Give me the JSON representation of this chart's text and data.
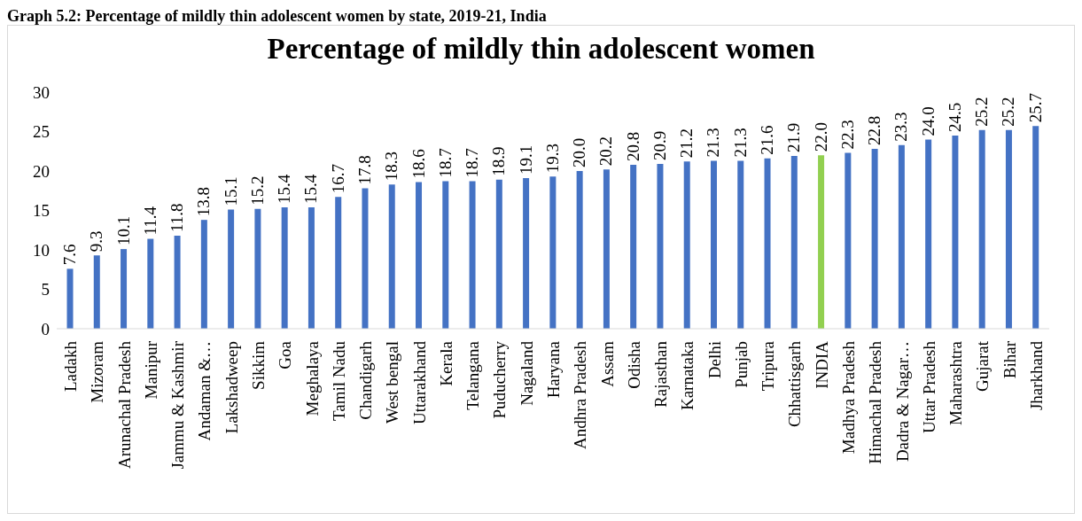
{
  "chart_data": {
    "type": "bar",
    "subtitle": "Graph 5.2: Percentage of mildly thin adolescent women by state, 2019-21, India",
    "title": "Percentage of mildly thin adolescent women",
    "categories": [
      "Ladakh",
      "Mizoram",
      "Arunachal Pradesh",
      "Manipur",
      "Jammu & Kashmir",
      "Andaman &…",
      "Lakshadweep",
      "Sikkim",
      "Goa",
      "Meghalaya",
      "Tamil Nadu",
      "Chandigarh",
      "West bengal",
      "Uttarakhand",
      "Kerala",
      "Telangana",
      "Puducherry",
      "Nagaland",
      "Haryana",
      "Andhra Pradesh",
      "Assam",
      "Odisha",
      "Rajasthan",
      "Karnataka",
      "Delhi",
      "Punjab",
      "Tripura",
      "Chhattisgarh",
      "INDIA",
      "Madhya Pradesh",
      "Himachal Pradesh",
      "Dadra & Nagar…",
      "Uttar Pradesh",
      "Maharashtra",
      "Gujarat",
      "Bihar",
      "Jharkhand"
    ],
    "values": [
      7.6,
      9.3,
      10.1,
      11.4,
      11.8,
      13.8,
      15.1,
      15.2,
      15.4,
      15.4,
      16.7,
      17.8,
      18.3,
      18.6,
      18.7,
      18.7,
      18.9,
      19.1,
      19.3,
      20.0,
      20.2,
      20.8,
      20.9,
      21.2,
      21.3,
      21.3,
      21.6,
      21.9,
      22.0,
      22.3,
      22.8,
      23.3,
      24.0,
      24.5,
      25.2,
      25.2,
      25.7
    ],
    "colors": [
      "#4472c4",
      "#4472c4",
      "#4472c4",
      "#4472c4",
      "#4472c4",
      "#4472c4",
      "#4472c4",
      "#4472c4",
      "#4472c4",
      "#4472c4",
      "#4472c4",
      "#4472c4",
      "#4472c4",
      "#4472c4",
      "#4472c4",
      "#4472c4",
      "#4472c4",
      "#4472c4",
      "#4472c4",
      "#4472c4",
      "#4472c4",
      "#4472c4",
      "#4472c4",
      "#4472c4",
      "#4472c4",
      "#4472c4",
      "#4472c4",
      "#4472c4",
      "#92d050",
      "#4472c4",
      "#4472c4",
      "#4472c4",
      "#4472c4",
      "#4472c4",
      "#4472c4",
      "#4472c4",
      "#4472c4"
    ],
    "ylim": [
      0,
      30
    ],
    "yticks": [
      0,
      5,
      10,
      15,
      20,
      25,
      30
    ],
    "grid": false,
    "value_labels": [
      "7.6",
      "9.3",
      "10.1",
      "11.4",
      "11.8",
      "13.8",
      "15.1",
      "15.2",
      "15.4",
      "15.4",
      "16.7",
      "17.8",
      "18.3",
      "18.6",
      "18.7",
      "18.7",
      "18.9",
      "19.1",
      "19.3",
      "20.0",
      "20.2",
      "20.8",
      "20.9",
      "21.2",
      "21.3",
      "21.3",
      "21.6",
      "21.9",
      "22.0",
      "22.3",
      "22.8",
      "23.3",
      "24.0",
      "24.5",
      "25.2",
      "25.2",
      "25.7"
    ]
  }
}
